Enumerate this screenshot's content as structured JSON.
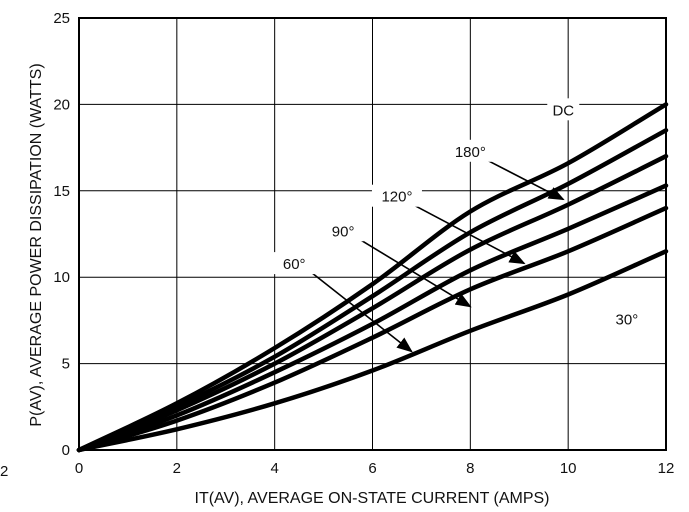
{
  "chart_data": {
    "type": "line",
    "xlabel": "IT(AV), AVERAGE ON-STATE CURRENT (AMPS)",
    "ylabel": "P(AV), AVERAGE POWER DISSIPATION (WATTS)",
    "xlim": [
      0,
      12
    ],
    "ylim": [
      0,
      25
    ],
    "xticks": [
      0,
      2,
      4,
      6,
      8,
      10,
      12
    ],
    "yticks": [
      0,
      5,
      10,
      15,
      20,
      25
    ],
    "grid": true,
    "x": [
      0,
      2,
      4,
      6,
      8,
      10,
      12
    ],
    "series": [
      {
        "name": "DC",
        "values": [
          0,
          2.7,
          5.9,
          9.6,
          13.8,
          16.6,
          20.0
        ]
      },
      {
        "name": "180°",
        "values": [
          0,
          2.5,
          5.4,
          8.9,
          12.6,
          15.4,
          18.5
        ]
      },
      {
        "name": "120°",
        "values": [
          0,
          2.3,
          5.0,
          8.2,
          11.6,
          14.2,
          17.0
        ]
      },
      {
        "name": "90°",
        "values": [
          0,
          2.0,
          4.5,
          7.3,
          10.4,
          12.8,
          15.3
        ]
      },
      {
        "name": "60°",
        "values": [
          0,
          1.7,
          3.9,
          6.5,
          9.3,
          11.5,
          14.0
        ]
      },
      {
        "name": "30°",
        "values": [
          0,
          1.2,
          2.7,
          4.6,
          6.9,
          9.0,
          11.5
        ]
      }
    ],
    "annotations": [
      {
        "text": "DC",
        "x": 9.9,
        "y": 19.6
      },
      {
        "text": "180°",
        "x": 8.0,
        "y": 17.2,
        "arrow_to": [
          9.9,
          14.5
        ]
      },
      {
        "text": "120°",
        "x": 6.5,
        "y": 14.6,
        "arrow_to": [
          9.1,
          10.8
        ]
      },
      {
        "text": "90°",
        "x": 5.4,
        "y": 12.6,
        "arrow_to": [
          8.0,
          8.3
        ]
      },
      {
        "text": "60°",
        "x": 4.4,
        "y": 10.7,
        "arrow_to": [
          6.8,
          5.7
        ]
      },
      {
        "text": "30°",
        "x": 11.2,
        "y": 7.5
      }
    ]
  },
  "edge_text": "2"
}
